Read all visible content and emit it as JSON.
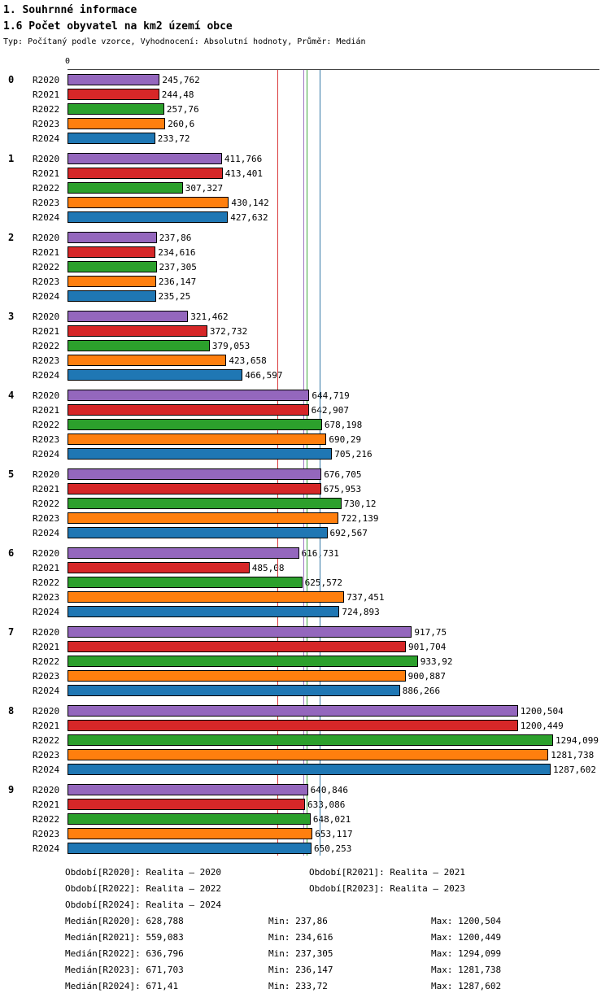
{
  "header": {
    "title": "1. Souhrnné informace",
    "subtitle": "1.6 Počet obyvatel na km2 území obce",
    "meta": "Typ: Počítaný podle vzorce, Vyhodnocení: Absolutní hodnoty, Průměr: Medián"
  },
  "chart_data": {
    "type": "bar",
    "orientation": "horizontal",
    "x_origin_label": "0",
    "xlim": [
      0,
      1420
    ],
    "grid": "median-lines-only",
    "categories": [
      "0",
      "1",
      "2",
      "3",
      "4",
      "5",
      "6",
      "7",
      "8",
      "9"
    ],
    "series": [
      {
        "name": "R2020",
        "color": "#9467bd",
        "values": [
          245.762,
          411.766,
          237.86,
          321.462,
          644.719,
          676.705,
          616.731,
          917.75,
          1200.504,
          640.846
        ],
        "labels": [
          "245,762",
          "411,766",
          "237,86",
          "321,462",
          "644,719",
          "676,705",
          "616,731",
          "917,75",
          "1200,504",
          "640,846"
        ],
        "median": 628.788
      },
      {
        "name": "R2021",
        "color": "#d62728",
        "values": [
          244.48,
          413.401,
          234.616,
          372.732,
          642.907,
          675.953,
          485.08,
          901.704,
          1200.449,
          633.086
        ],
        "labels": [
          "244,48",
          "413,401",
          "234,616",
          "372,732",
          "642,907",
          "675,953",
          "485,08",
          "901,704",
          "1200,449",
          "633,086"
        ],
        "median": 559.083
      },
      {
        "name": "R2022",
        "color": "#2ca02c",
        "values": [
          257.76,
          307.327,
          237.305,
          379.053,
          678.198,
          730.12,
          625.572,
          933.92,
          1294.099,
          648.021
        ],
        "labels": [
          "257,76",
          "307,327",
          "237,305",
          "379,053",
          "678,198",
          "730,12",
          "625,572",
          "933,92",
          "1294,099",
          "648,021"
        ],
        "median": 636.796
      },
      {
        "name": "R2023",
        "color": "#ff7f0e",
        "values": [
          260.6,
          430.142,
          236.147,
          423.658,
          690.29,
          722.139,
          737.451,
          900.887,
          1281.738,
          653.117
        ],
        "labels": [
          "260,6",
          "430,142",
          "236,147",
          "423,658",
          "690,29",
          "722,139",
          "737,451",
          "900,887",
          "1281,738",
          "653,117"
        ],
        "median": 671.703
      },
      {
        "name": "R2024",
        "color": "#1f77b4",
        "values": [
          233.72,
          427.632,
          235.25,
          466.597,
          705.216,
          692.567,
          724.893,
          886.266,
          1287.602,
          650.253
        ],
        "labels": [
          "233,72",
          "427,632",
          "235,25",
          "466,597",
          "705,216",
          "692,567",
          "724,893",
          "886,266",
          "1287,602",
          "650,253"
        ],
        "median": 671.41
      }
    ]
  },
  "footer": {
    "legend": [
      [
        "Období[R2020]: Realita – 2020",
        "Období[R2021]: Realita – 2021"
      ],
      [
        "Období[R2022]: Realita – 2022",
        "Období[R2023]: Realita – 2023"
      ],
      [
        "Období[R2024]: Realita – 2024",
        ""
      ]
    ],
    "stats": [
      [
        "Medián[R2020]: 628,788",
        "Min: 237,86",
        "Max: 1200,504"
      ],
      [
        "Medián[R2021]: 559,083",
        "Min: 234,616",
        "Max: 1200,449"
      ],
      [
        "Medián[R2022]: 636,796",
        "Min: 237,305",
        "Max: 1294,099"
      ],
      [
        "Medián[R2023]: 671,703",
        "Min: 236,147",
        "Max: 1281,738"
      ],
      [
        "Medián[R2024]: 671,41",
        "Min: 233,72",
        "Max: 1287,602"
      ]
    ]
  }
}
